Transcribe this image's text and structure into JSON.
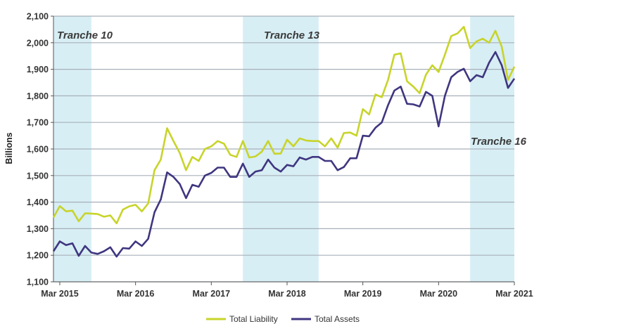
{
  "chart_data": {
    "type": "line",
    "title": "",
    "xlabel": "",
    "ylabel": "Billions",
    "ylim": [
      1100,
      2100
    ],
    "yticks": [
      "1,100",
      "1,200",
      "1,300",
      "1,400",
      "1,500",
      "1,600",
      "1,700",
      "1,800",
      "1,900",
      "2,000",
      "2,100"
    ],
    "xticks": [
      "Mar 2015",
      "Mar 2016",
      "Mar 2017",
      "Mar 2018",
      "Mar 2019",
      "Mar 2020",
      "Mar 2021"
    ],
    "xrange": [
      "2015-02",
      "2021-03"
    ],
    "grid": "horizontal",
    "legend_position": "bottom-center",
    "x": [
      "2015-02",
      "2015-03",
      "2015-04",
      "2015-05",
      "2015-06",
      "2015-07",
      "2015-08",
      "2015-09",
      "2015-10",
      "2015-11",
      "2015-12",
      "2016-01",
      "2016-02",
      "2016-03",
      "2016-04",
      "2016-05",
      "2016-06",
      "2016-07",
      "2016-08",
      "2016-09",
      "2016-10",
      "2016-11",
      "2016-12",
      "2017-01",
      "2017-02",
      "2017-03",
      "2017-04",
      "2017-05",
      "2017-06",
      "2017-07",
      "2017-08",
      "2017-09",
      "2017-10",
      "2017-11",
      "2017-12",
      "2018-01",
      "2018-02",
      "2018-03",
      "2018-04",
      "2018-05",
      "2018-06",
      "2018-07",
      "2018-08",
      "2018-09",
      "2018-10",
      "2018-11",
      "2018-12",
      "2019-01",
      "2019-02",
      "2019-03",
      "2019-04",
      "2019-05",
      "2019-06",
      "2019-07",
      "2019-08",
      "2019-09",
      "2019-10",
      "2019-11",
      "2019-12",
      "2020-01",
      "2020-02",
      "2020-03",
      "2020-04",
      "2020-05",
      "2020-06",
      "2020-07",
      "2020-08",
      "2020-09",
      "2020-10",
      "2020-11",
      "2020-12",
      "2021-01",
      "2021-02",
      "2021-03"
    ],
    "series": [
      {
        "name": "Total Liability",
        "color": "#c8d42a",
        "values": [
          1342,
          1385,
          1365,
          1368,
          1328,
          1358,
          1357,
          1355,
          1345,
          1350,
          1320,
          1372,
          1384,
          1390,
          1365,
          1395,
          1520,
          1560,
          1678,
          1630,
          1585,
          1520,
          1570,
          1555,
          1600,
          1610,
          1630,
          1620,
          1578,
          1570,
          1630,
          1568,
          1572,
          1590,
          1630,
          1582,
          1583,
          1635,
          1610,
          1640,
          1632,
          1630,
          1630,
          1610,
          1640,
          1605,
          1660,
          1662,
          1650,
          1750,
          1730,
          1805,
          1795,
          1860,
          1955,
          1960,
          1855,
          1835,
          1810,
          1880,
          1915,
          1890,
          1955,
          2025,
          2035,
          2060,
          1980,
          2005,
          2015,
          2000,
          2045,
          1985,
          1860,
          1910
        ]
      },
      {
        "name": "Total Assets",
        "color": "#3f3680",
        "values": [
          1215,
          1252,
          1238,
          1245,
          1198,
          1235,
          1210,
          1205,
          1215,
          1230,
          1195,
          1227,
          1225,
          1252,
          1235,
          1262,
          1362,
          1410,
          1512,
          1495,
          1468,
          1415,
          1465,
          1458,
          1500,
          1510,
          1530,
          1530,
          1495,
          1495,
          1545,
          1495,
          1515,
          1520,
          1560,
          1530,
          1515,
          1540,
          1535,
          1568,
          1560,
          1570,
          1570,
          1555,
          1555,
          1520,
          1532,
          1565,
          1565,
          1650,
          1648,
          1680,
          1700,
          1765,
          1820,
          1835,
          1770,
          1768,
          1760,
          1815,
          1800,
          1685,
          1800,
          1870,
          1890,
          1902,
          1855,
          1878,
          1870,
          1925,
          1965,
          1915,
          1830,
          1865
        ]
      }
    ],
    "bands": [
      {
        "label": "Tranche 10",
        "from": "2015-02",
        "to": "2015-08"
      },
      {
        "label": "Tranche 13",
        "from": "2017-08",
        "to": "2018-08"
      },
      {
        "label": "Tranche 16",
        "from": "2020-08",
        "to": "2021-03"
      }
    ],
    "band_color": "#d7eef4",
    "grid_color": "#a8b0ba"
  }
}
